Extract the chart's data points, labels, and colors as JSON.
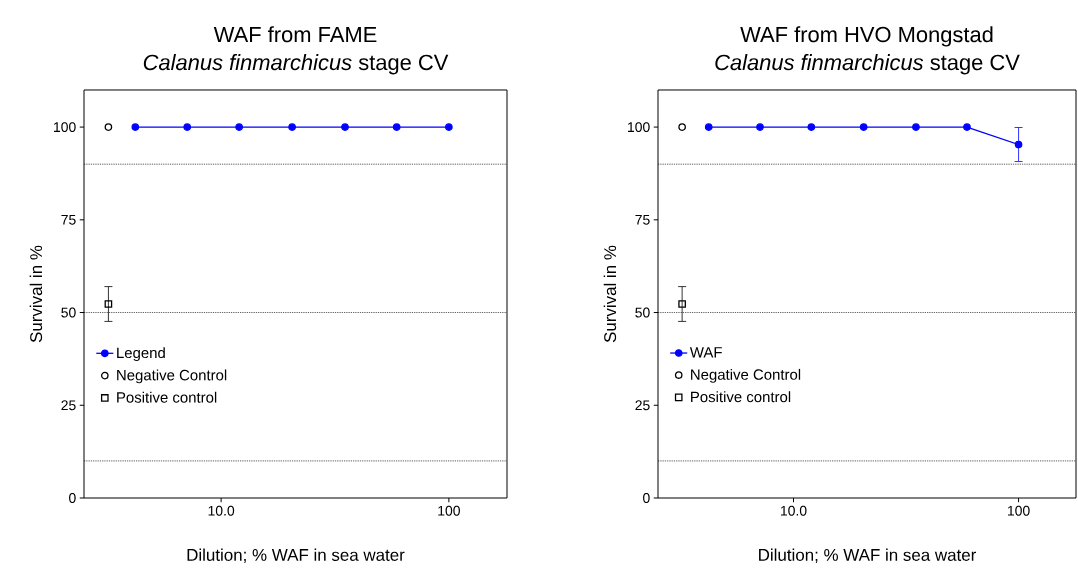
{
  "chart_data": [
    {
      "type": "line",
      "title": "WAF from FAME",
      "subtitle": "*Calanus finmarchicus* stage CV",
      "xlabel": "Dilution; % WAF in sea water",
      "ylabel": "Survival in %",
      "log": "x",
      "xlim": [
        2.5,
        180
      ],
      "xticks": [
        {
          "value": 10,
          "label": "10.0"
        },
        100
      ],
      "ylim": [
        0,
        110
      ],
      "yticks": [
        0,
        25,
        50,
        75,
        100
      ],
      "legend": "bottom left",
      "ref_lines": [
        {
          "axis": "y",
          "value": 90,
          "line_style": "dotted"
        },
        {
          "axis": "y",
          "value": 50,
          "line_style": "dotted"
        },
        {
          "axis": "y",
          "value": 10,
          "line_style": "dotted"
        }
      ],
      "series": [
        {
          "name": "Legend",
          "type": "line",
          "color": "#0000ff",
          "marker": "circle",
          "x": [
            4.2,
            7.1,
            12,
            20.5,
            35,
            59,
            100
          ],
          "values": [
            100,
            100,
            100,
            100,
            100,
            100,
            100
          ]
        },
        {
          "name": "Negative Control",
          "type": "scatter",
          "color": "#000000",
          "marker": "circle",
          "x": [
            3.2
          ],
          "values": [
            100
          ]
        },
        {
          "name": "Positive control",
          "type": "scatter",
          "color": "#000000",
          "marker": "square",
          "x": [
            3.2
          ],
          "values": [
            52.3
          ],
          "errors": [
            4.8
          ]
        }
      ]
    },
    {
      "type": "line",
      "title": "WAF from HVO Mongstad",
      "subtitle": "*Calanus finmarchicus* stage CV",
      "xlabel": "Dilution; % WAF in sea water",
      "ylabel": "Survival in %",
      "log": "x",
      "xlim": [
        2.5,
        180
      ],
      "xticks": [
        {
          "value": 10,
          "label": "10.0"
        },
        100
      ],
      "ylim": [
        0,
        110
      ],
      "yticks": [
        0,
        25,
        50,
        75,
        100
      ],
      "legend": "bottom left",
      "ref_lines": [
        {
          "axis": "y",
          "value": 90,
          "line_style": "dotted"
        },
        {
          "axis": "y",
          "value": 50,
          "line_style": "dotted"
        },
        {
          "axis": "y",
          "value": 10,
          "line_style": "dotted"
        }
      ],
      "series": [
        {
          "name": "WAF",
          "type": "line",
          "color": "#0000ff",
          "marker": "circle",
          "x": [
            4.2,
            7.1,
            12,
            20.5,
            35,
            59,
            100
          ],
          "values": [
            100,
            100,
            100,
            100,
            100,
            100,
            95.3
          ],
          "errors": [
            null,
            null,
            null,
            null,
            null,
            null,
            4.7
          ]
        },
        {
          "name": "Negative Control",
          "type": "scatter",
          "color": "#000000",
          "marker": "circle",
          "x": [
            3.2
          ],
          "values": [
            100
          ]
        },
        {
          "name": "Positive control",
          "type": "scatter",
          "color": "#000000",
          "marker": "square",
          "x": [
            3.2
          ],
          "values": [
            52.3
          ],
          "errors": [
            4.8
          ]
        }
      ]
    }
  ]
}
